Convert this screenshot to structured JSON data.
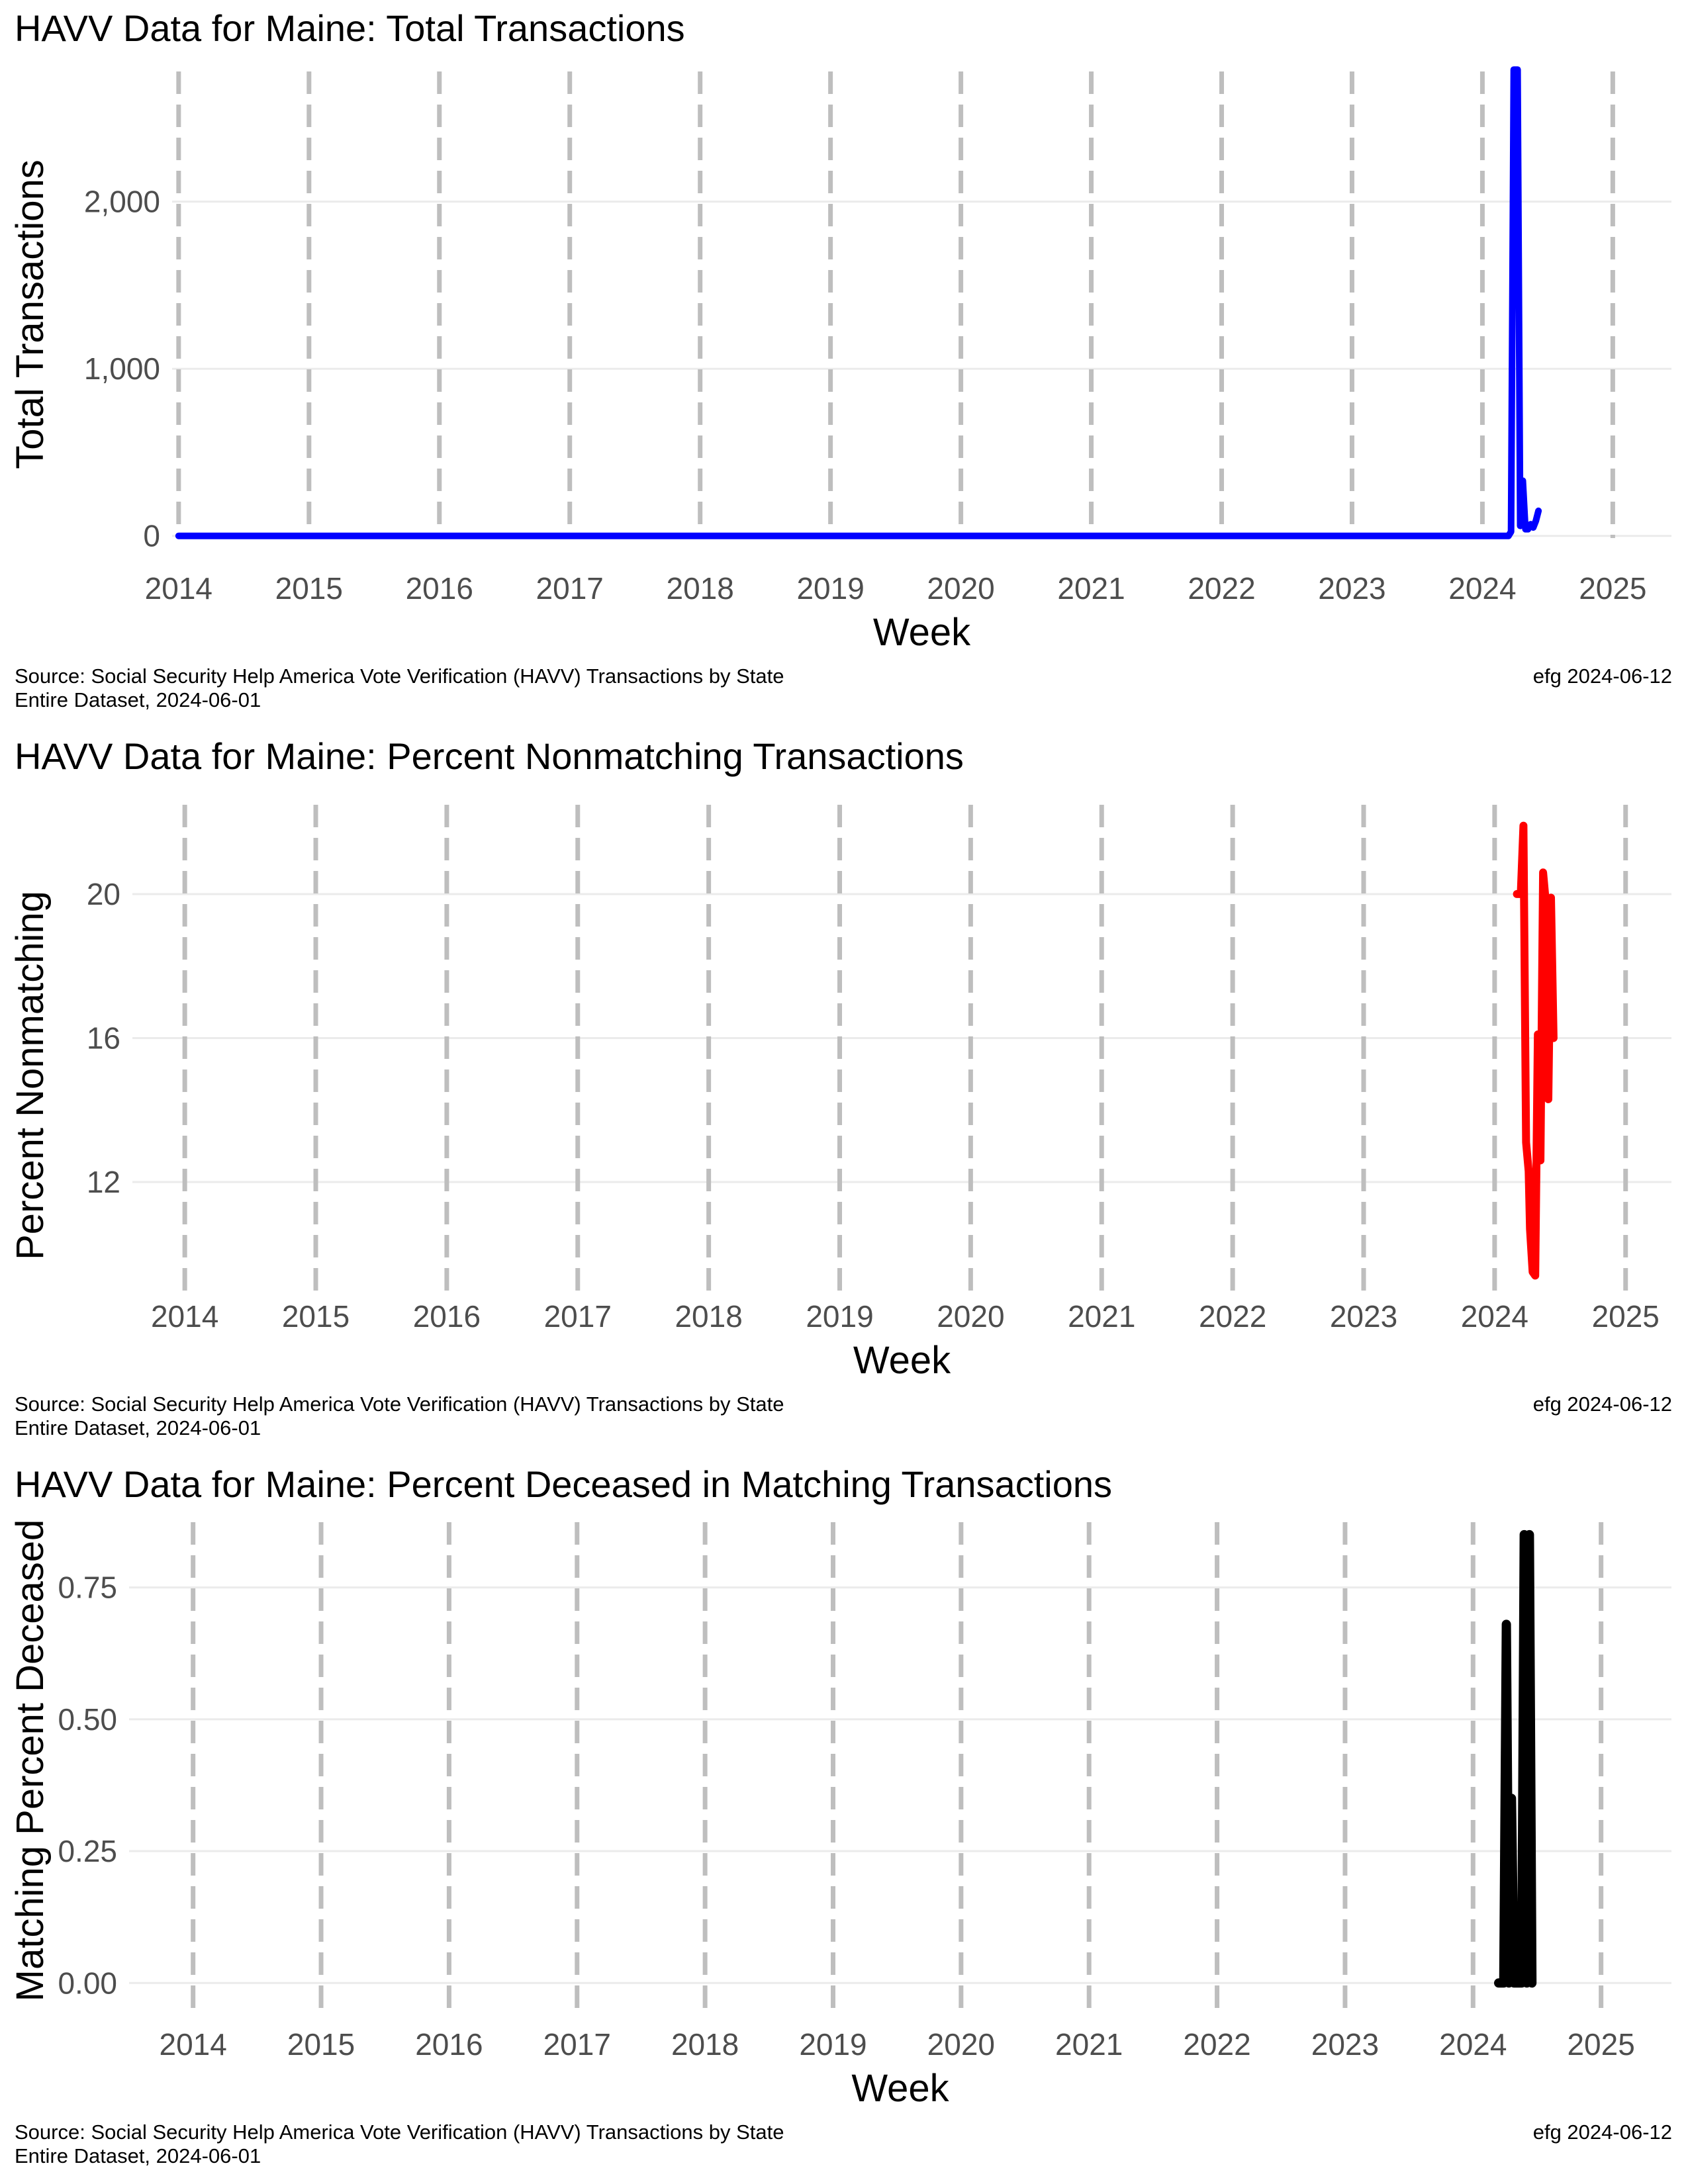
{
  "chart_data": [
    {
      "type": "line",
      "title": "HAVV Data for Maine:  Total Transactions",
      "xlabel": "Week",
      "ylabel": "Total Transactions",
      "x_ticks": [
        "2014",
        "2015",
        "2016",
        "2017",
        "2018",
        "2019",
        "2020",
        "2021",
        "2022",
        "2023",
        "2024",
        "2025"
      ],
      "y_ticks": [
        0,
        1000,
        2000
      ],
      "y_tick_labels": [
        "0",
        "1,000",
        "2,000"
      ],
      "xlim": [
        2013.95,
        2025.45
      ],
      "ylim": [
        -100,
        2850
      ],
      "grid": true,
      "year_reference_lines": "dashed grey vertical line at each January 1",
      "series": [
        {
          "color": "#0000ff",
          "points": [
            [
              2014.0,
              0
            ],
            [
              2024.2,
              0
            ],
            [
              2024.22,
              25
            ],
            [
              2024.24,
              2790
            ],
            [
              2024.27,
              2790
            ],
            [
              2024.29,
              60
            ],
            [
              2024.31,
              330
            ],
            [
              2024.33,
              40
            ],
            [
              2024.35,
              40
            ],
            [
              2024.37,
              70
            ],
            [
              2024.39,
              50
            ],
            [
              2024.41,
              90
            ],
            [
              2024.43,
              150
            ]
          ]
        }
      ],
      "source_caption": "Source:  Social Security Help America Vote Verification (HAVV) Transactions by State",
      "dataset_caption": "Entire Dataset, 2024-06-01",
      "credit": "efg 2024-06-12"
    },
    {
      "type": "line",
      "title": "HAVV Data for Maine:  Percent Nonmatching Transactions",
      "xlabel": "Week",
      "ylabel": "Percent Nonmatching",
      "x_ticks": [
        "2014",
        "2015",
        "2016",
        "2017",
        "2018",
        "2019",
        "2020",
        "2021",
        "2022",
        "2023",
        "2024",
        "2025"
      ],
      "y_ticks": [
        12,
        16,
        20
      ],
      "y_tick_labels": [
        "12",
        "16",
        "20"
      ],
      "xlim": [
        2013.6,
        2025.35
      ],
      "ylim": [
        8.8,
        22.5
      ],
      "grid": true,
      "year_reference_lines": "dashed grey vertical line at each January 1",
      "series": [
        {
          "color": "#ff0000",
          "points": [
            [
              2024.17,
              20.0
            ],
            [
              2024.2,
              20.0
            ],
            [
              2024.22,
              21.9
            ],
            [
              2024.24,
              13.1
            ],
            [
              2024.26,
              12.3
            ],
            [
              2024.27,
              10.7
            ],
            [
              2024.29,
              9.5
            ],
            [
              2024.31,
              9.4
            ],
            [
              2024.33,
              16.1
            ],
            [
              2024.35,
              12.6
            ],
            [
              2024.37,
              20.6
            ],
            [
              2024.39,
              19.8
            ],
            [
              2024.41,
              14.3
            ],
            [
              2024.43,
              19.9
            ],
            [
              2024.45,
              16.0
            ]
          ]
        }
      ],
      "source_caption": "Source:  Social Security Help America Vote Verification (HAVV) Transactions by State",
      "dataset_caption": "Entire Dataset, 2024-06-01",
      "credit": "efg 2024-06-12"
    },
    {
      "type": "line",
      "title": "HAVV Data for Maine:  Percent Deceased in Matching Transactions",
      "xlabel": "Week",
      "ylabel": "Matching Percent Deceased",
      "x_ticks": [
        "2014",
        "2015",
        "2016",
        "2017",
        "2018",
        "2019",
        "2020",
        "2021",
        "2022",
        "2023",
        "2024",
        "2025"
      ],
      "y_ticks": [
        0,
        0.25,
        0.5,
        0.75
      ],
      "y_tick_labels": [
        "0.00",
        "0.25",
        "0.50",
        "0.75"
      ],
      "xlim": [
        2013.5,
        2025.55
      ],
      "ylim": [
        -0.08,
        0.88
      ],
      "grid": true,
      "year_reference_lines": "dashed grey vertical line at each January 1",
      "series": [
        {
          "color": "#000000",
          "points": [
            [
              2024.2,
              0.0
            ],
            [
              2024.22,
              0.0
            ],
            [
              2024.24,
              0.0
            ],
            [
              2024.26,
              0.68
            ],
            [
              2024.28,
              0.0
            ],
            [
              2024.3,
              0.35
            ],
            [
              2024.32,
              0.0
            ],
            [
              2024.34,
              0.0
            ],
            [
              2024.36,
              0.0
            ],
            [
              2024.38,
              0.0
            ],
            [
              2024.4,
              0.85
            ],
            [
              2024.42,
              0.0
            ],
            [
              2024.44,
              0.85
            ],
            [
              2024.46,
              0.0
            ]
          ]
        }
      ],
      "source_caption": "Source:  Social Security Help America Vote Verification (HAVV) Transactions by State",
      "dataset_caption": "Entire Dataset, 2024-06-01",
      "credit": "efg 2024-06-12"
    }
  ]
}
